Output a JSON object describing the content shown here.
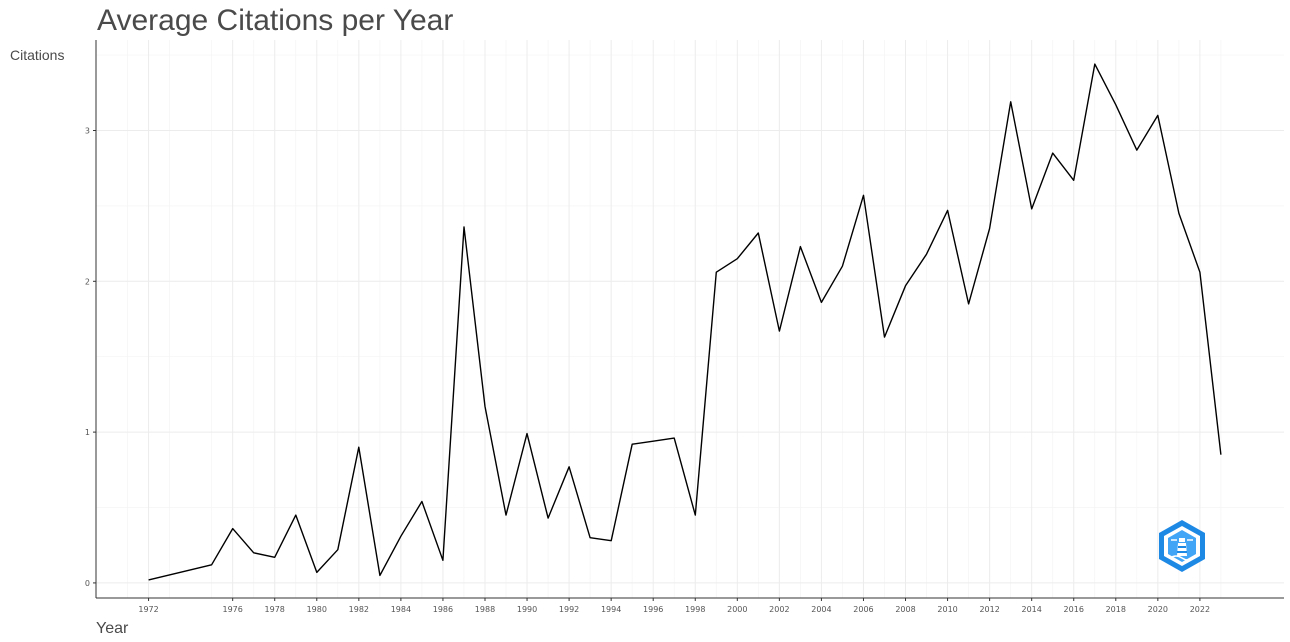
{
  "chart_data": {
    "type": "line",
    "title": "Average Citations per Year",
    "xlabel": "Year",
    "ylabel": "Citations",
    "x": [
      1972,
      1975,
      1976,
      1977,
      1978,
      1979,
      1980,
      1981,
      1982,
      1983,
      1984,
      1985,
      1986,
      1987,
      1988,
      1989,
      1990,
      1991,
      1992,
      1993,
      1994,
      1995,
      1996,
      1997,
      1998,
      1999,
      2000,
      2001,
      2002,
      2003,
      2004,
      2005,
      2006,
      2007,
      2008,
      2009,
      2010,
      2011,
      2012,
      2013,
      2014,
      2015,
      2016,
      2017,
      2018,
      2019,
      2020,
      2021,
      2022,
      2023
    ],
    "series": [
      {
        "values": [
          0.02,
          0.12,
          0.36,
          0.2,
          0.17,
          0.45,
          0.07,
          0.22,
          0.9,
          0.05,
          0.31,
          0.54,
          0.15,
          2.36,
          1.17,
          0.45,
          0.99,
          0.43,
          0.77,
          0.3,
          0.28,
          0.92,
          0.94,
          0.96,
          0.45,
          2.06,
          2.15,
          2.32,
          1.67,
          2.23,
          1.86,
          2.1,
          2.57,
          1.63,
          1.97,
          2.18,
          2.47,
          1.85,
          2.35,
          3.19,
          2.48,
          2.85,
          2.67,
          3.44,
          3.17,
          2.87,
          3.1,
          2.45,
          2.06,
          0.85
        ],
        "color": "#000000"
      }
    ],
    "x_ticks": [
      "1972",
      "1976",
      "1978",
      "1980",
      "1982",
      "1984",
      "1986",
      "1988",
      "1990",
      "1992",
      "1994",
      "1996",
      "1998",
      "2000",
      "2002",
      "2004",
      "2006",
      "2008",
      "2010",
      "2012",
      "2014",
      "2016",
      "2018",
      "2020",
      "2022"
    ],
    "y_ticks": [
      "0",
      "1",
      "2",
      "3"
    ],
    "xlim": [
      1969.5,
      2026
    ],
    "ylim": [
      -0.1,
      3.6
    ],
    "grid": true,
    "legend": "none"
  },
  "logo": {
    "icon": "lighthouse-hexagon-logo",
    "color": "#1e88e5"
  }
}
